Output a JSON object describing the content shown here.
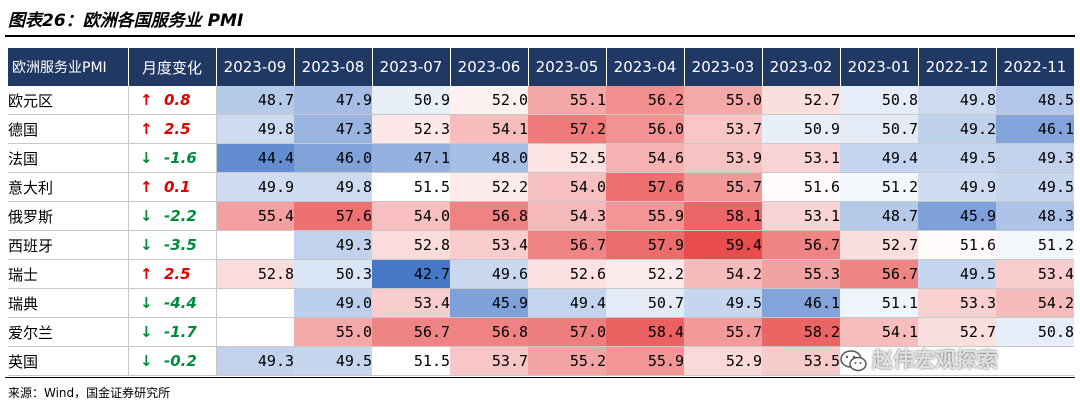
{
  "title": "图表26：欧洲各国服务业 PMI",
  "source": "来源：Wind，国金证券研究所",
  "watermark": "赵伟宏观探索",
  "colors": {
    "header_bg": "#1f3864",
    "up": "#e00000",
    "down": "#008a3c"
  },
  "table": {
    "header_country": "欧洲服务业PMI",
    "header_change": "月度变化",
    "months": [
      "2023-09",
      "2023-08",
      "2023-07",
      "2023-06",
      "2023-05",
      "2023-04",
      "2023-03",
      "2023-02",
      "2023-01",
      "2022-12",
      "2022-11"
    ],
    "rows": [
      {
        "country": "欧元区",
        "dir": "up",
        "arrow": "↑",
        "change": "0.8",
        "values": [
          "48.7",
          "47.9",
          "50.9",
          "52.0",
          "55.1",
          "56.2",
          "55.0",
          "52.7",
          "50.8",
          "49.8",
          "48.5"
        ]
      },
      {
        "country": "德国",
        "dir": "up",
        "arrow": "↑",
        "change": "2.5",
        "values": [
          "49.8",
          "47.3",
          "52.3",
          "54.1",
          "57.2",
          "56.0",
          "53.7",
          "50.9",
          "50.7",
          "49.2",
          "46.1"
        ]
      },
      {
        "country": "法国",
        "dir": "down",
        "arrow": "↓",
        "change": "-1.6",
        "values": [
          "44.4",
          "46.0",
          "47.1",
          "48.0",
          "52.5",
          "54.6",
          "53.9",
          "53.1",
          "49.4",
          "49.5",
          "49.3"
        ]
      },
      {
        "country": "意大利",
        "dir": "up",
        "arrow": "↑",
        "change": "0.1",
        "values": [
          "49.9",
          "49.8",
          "51.5",
          "52.2",
          "54.0",
          "57.6",
          "55.7",
          "51.6",
          "51.2",
          "49.9",
          "49.5"
        ]
      },
      {
        "country": "俄罗斯",
        "dir": "down",
        "arrow": "↓",
        "change": "-2.2",
        "values": [
          "55.4",
          "57.6",
          "54.0",
          "56.8",
          "54.3",
          "55.9",
          "58.1",
          "53.1",
          "48.7",
          "45.9",
          "48.3"
        ]
      },
      {
        "country": "西班牙",
        "dir": "down",
        "arrow": "↓",
        "change": "-3.5",
        "values": [
          "",
          "49.3",
          "52.8",
          "53.4",
          "56.7",
          "57.9",
          "59.4",
          "56.7",
          "52.7",
          "51.6",
          "51.2"
        ]
      },
      {
        "country": "瑞士",
        "dir": "up",
        "arrow": "↑",
        "change": "2.5",
        "values": [
          "52.8",
          "50.3",
          "42.7",
          "49.6",
          "52.6",
          "52.2",
          "54.2",
          "55.3",
          "56.7",
          "49.5",
          "53.4"
        ]
      },
      {
        "country": "瑞典",
        "dir": "down",
        "arrow": "↓",
        "change": "-4.4",
        "values": [
          "",
          "49.0",
          "53.4",
          "45.9",
          "49.4",
          "50.7",
          "49.5",
          "46.1",
          "51.1",
          "53.3",
          "54.2"
        ]
      },
      {
        "country": "爱尔兰",
        "dir": "down",
        "arrow": "↓",
        "change": "-1.7",
        "values": [
          "",
          "55.0",
          "56.7",
          "56.8",
          "57.0",
          "58.4",
          "55.7",
          "58.2",
          "54.1",
          "52.7",
          "50.8"
        ]
      },
      {
        "country": "英国",
        "dir": "down",
        "arrow": "↓",
        "change": "-0.2",
        "values": [
          "49.3",
          "49.5",
          "51.5",
          "53.7",
          "55.2",
          "55.9",
          "52.9",
          "53.5",
          "",
          "",
          ""
        ]
      }
    ]
  }
}
